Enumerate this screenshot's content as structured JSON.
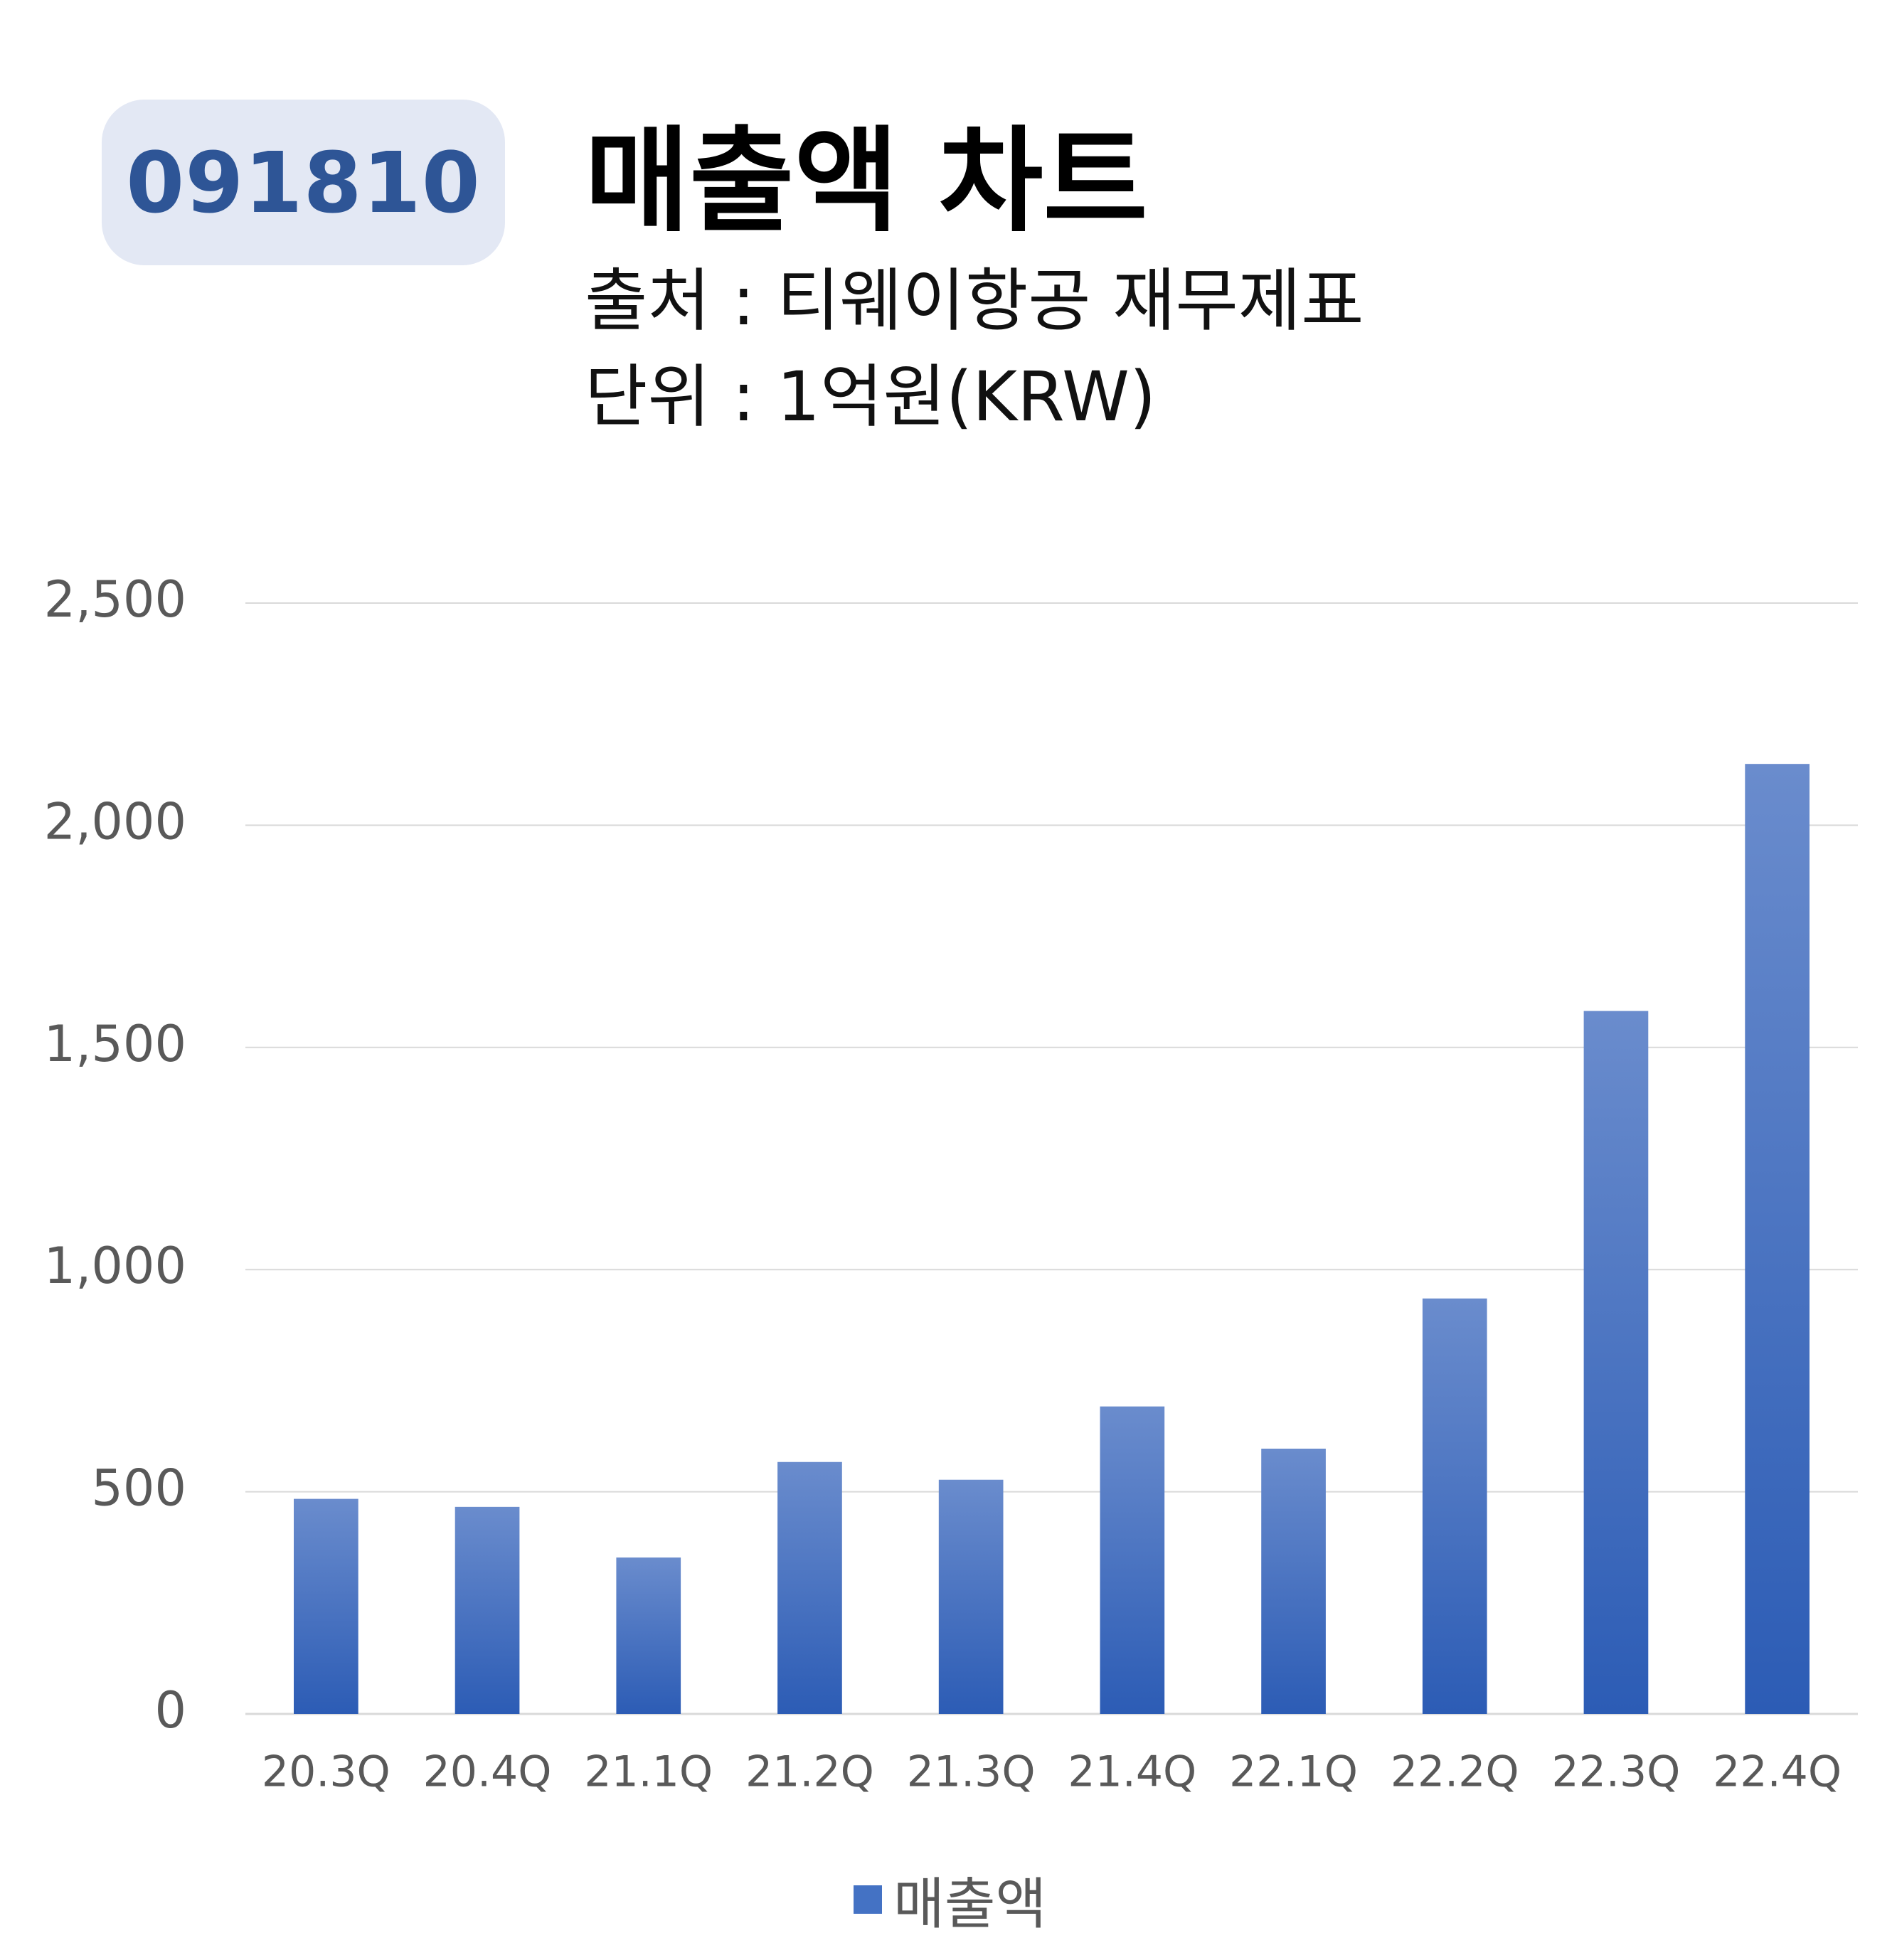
{
  "header": {
    "code": "091810",
    "title": "매출액 차트",
    "source": "출처 : 티웨이항공 재무제표",
    "unit": "단위 : 1억원(KRW)"
  },
  "colors": {
    "bar_top": "#6a8ccd",
    "bar_bottom": "#2c5cb5",
    "grid": "#d9d9d9",
    "axis_text": "#595959",
    "badge_bg": "#e3e8f4",
    "badge_text": "#2e5596"
  },
  "chart_data": {
    "type": "bar",
    "categories": [
      "20.3Q",
      "20.4Q",
      "21.1Q",
      "21.2Q",
      "21.3Q",
      "21.4Q",
      "22.1Q",
      "22.2Q",
      "22.3Q",
      "22.4Q"
    ],
    "series": [
      {
        "name": "매출액",
        "values": [
          484,
          466,
          352,
          567,
          527,
          692,
          597,
          935,
          1582,
          2138
        ]
      }
    ],
    "ylim": [
      0,
      2500
    ],
    "yticks": [
      0,
      500,
      1000,
      1500,
      2000,
      2500
    ],
    "ytick_labels": [
      "0",
      "500",
      "1,000",
      "1,500",
      "2,000",
      "2,500"
    ],
    "grid": true,
    "legend": "bottom"
  }
}
